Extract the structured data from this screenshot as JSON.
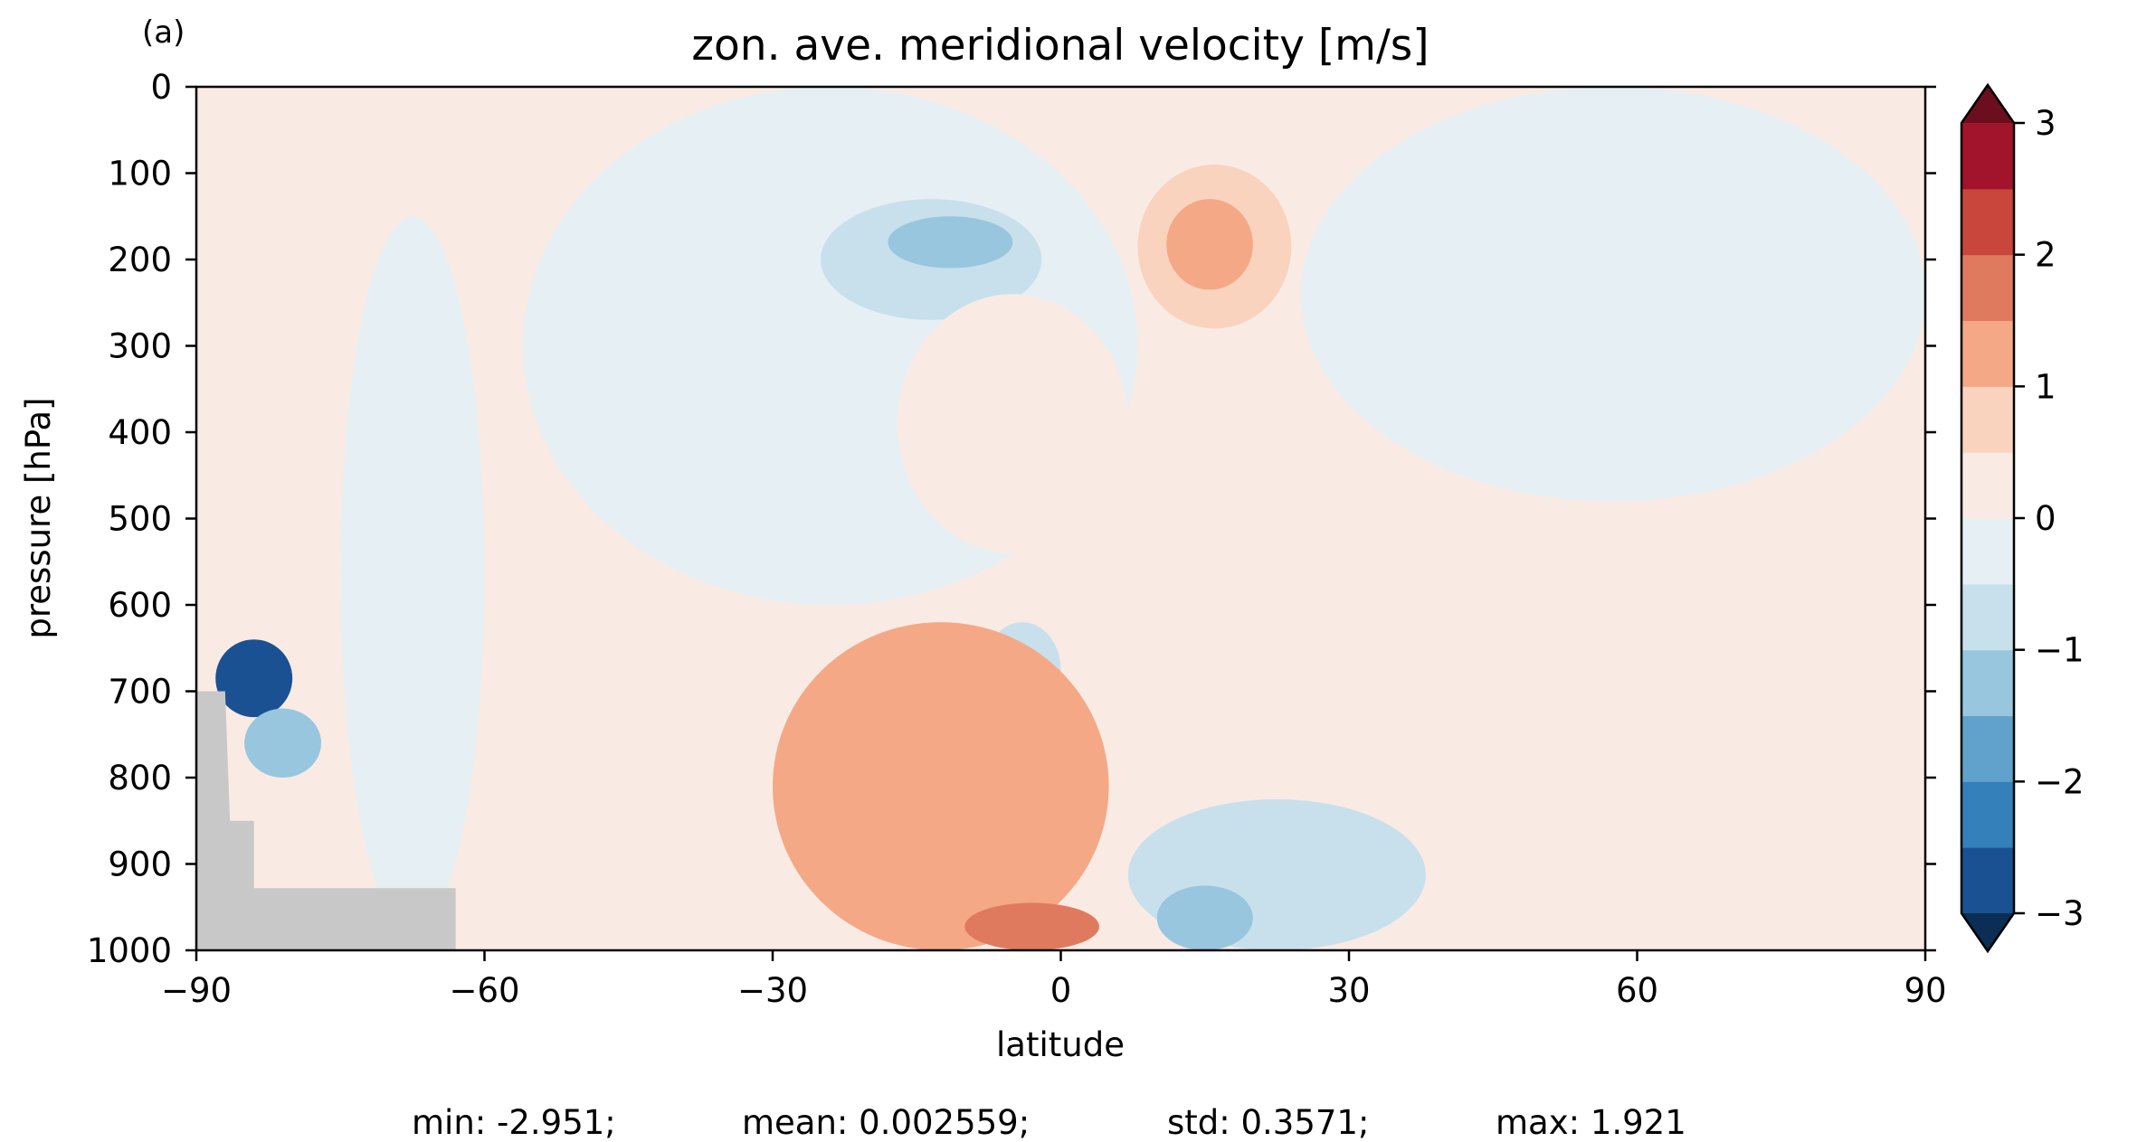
{
  "chart_data": {
    "type": "contourf",
    "panel_label": "(a)",
    "title": "zon. ave. meridional velocity [m/s]",
    "xlabel": "latitude",
    "ylabel": "pressure [hPa]",
    "xlim": [
      -90,
      90
    ],
    "ylim": [
      1000,
      0
    ],
    "xticks": [
      -90,
      -60,
      -30,
      0,
      30,
      60,
      90
    ],
    "xtick_labels": [
      "−90",
      "−60",
      "−30",
      "0",
      "30",
      "60",
      "90"
    ],
    "yticks": [
      0,
      100,
      200,
      300,
      400,
      500,
      600,
      700,
      800,
      900,
      1000
    ],
    "ytick_labels": [
      "0",
      "100",
      "200",
      "300",
      "400",
      "500",
      "600",
      "700",
      "800",
      "900",
      "1000"
    ],
    "colorbar": {
      "levels": [
        -3,
        -2.5,
        -2,
        -1.5,
        -1,
        -0.5,
        0,
        0.5,
        1,
        1.5,
        2,
        2.5,
        3
      ],
      "colors": [
        "#1a5192",
        "#3380bb",
        "#60a2cb",
        "#98c6df",
        "#c8e0ec",
        "#e6eff4",
        "#f9ebe4",
        "#f9d3be",
        "#f4a886",
        "#e07a5f",
        "#c9463d",
        "#a2142b"
      ],
      "under_color": "#0b2f54",
      "over_color": "#6b0f1e",
      "extend": "both",
      "ticks": [
        3,
        2,
        1,
        0,
        -1,
        -2,
        -3
      ],
      "tick_labels": [
        "3",
        "2",
        "1",
        "0",
        "−1",
        "−2",
        "−3"
      ]
    },
    "background_field_value": 0.25,
    "features": [
      {
        "lat": [
          -90,
          -55,
          -45,
          -40,
          -32,
          -35
        ],
        "p": [
          0,
          0,
          120,
          300,
          460,
          560
        ],
        "value": 0.25,
        "note": "positive tongue"
      },
      {
        "lat": [
          -56,
          8
        ],
        "p": [
          0,
          600
        ],
        "value": -0.3
      },
      {
        "lat": [
          -75,
          -60
        ],
        "p": [
          150,
          980
        ],
        "value": -0.3
      },
      {
        "lat": [
          -25,
          -2
        ],
        "p": [
          130,
          270
        ],
        "value": -0.7
      },
      {
        "lat": [
          -18,
          -5
        ],
        "p": [
          150,
          210
        ],
        "value": -1.2
      },
      {
        "lat": [
          8,
          24
        ],
        "p": [
          90,
          280
        ],
        "value": 0.7
      },
      {
        "lat": [
          11,
          20
        ],
        "p": [
          130,
          235
        ],
        "value": 1.2
      },
      {
        "lat": [
          -17,
          7
        ],
        "p": [
          240,
          540
        ],
        "value": 0.25
      },
      {
        "lat": [
          -8,
          0
        ],
        "p": [
          620,
          730
        ],
        "value": -0.7
      },
      {
        "lat": [
          -88,
          -80
        ],
        "p": [
          640,
          730
        ],
        "value": -2.8
      },
      {
        "lat": [
          -85,
          -77
        ],
        "p": [
          720,
          800
        ],
        "value": -1.2
      },
      {
        "lat": [
          -30,
          5
        ],
        "p": [
          620,
          1000
        ],
        "value": 1.2
      },
      {
        "lat": [
          -10,
          4
        ],
        "p": [
          945,
          1000
        ],
        "value": 1.7
      },
      {
        "lat": [
          7,
          38
        ],
        "p": [
          825,
          1000
        ],
        "value": -0.7
      },
      {
        "lat": [
          10,
          20
        ],
        "p": [
          925,
          1000
        ],
        "value": -1.2
      },
      {
        "lat": [
          25,
          90
        ],
        "p": [
          0,
          480
        ],
        "value": -0.3
      }
    ],
    "topography_mask": {
      "color": "#c8c8c8",
      "lat": [
        -90,
        -87,
        -86.5,
        -84,
        -84,
        -63,
        -63,
        -90
      ],
      "p": [
        700,
        700,
        850,
        850,
        928,
        928,
        1000,
        1000
      ]
    }
  },
  "stats": {
    "min": "min: -2.951;",
    "mean": "mean: 0.002559;",
    "std": "std: 0.3571;",
    "max": "max: 1.921"
  }
}
